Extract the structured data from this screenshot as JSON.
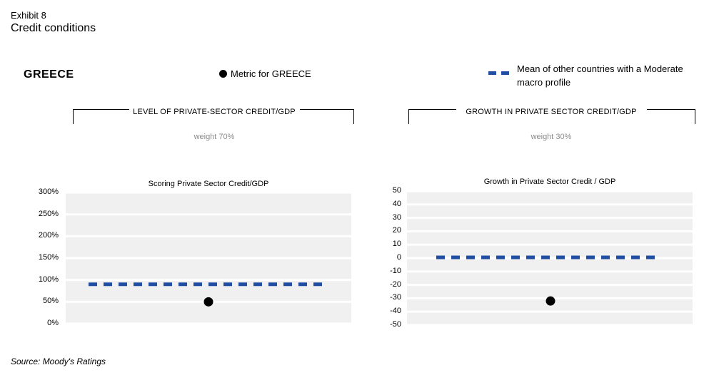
{
  "header": {
    "exhibit": "Exhibit 8",
    "title": "Credit conditions"
  },
  "country": "GREECE",
  "legend": {
    "dot_label": "Metric for GREECE",
    "dash_label": "Mean of other countries with a Moderate macro profile",
    "dash_color": "#1f4ea3",
    "dot_color": "#000000"
  },
  "sections": [
    {
      "heading": "LEVEL OF PRIVATE-SECTOR CREDIT/GDP",
      "weight": "weight 70%"
    },
    {
      "heading": "GROWTH IN PRIVATE SECTOR CREDIT/GDP",
      "weight": "weight 30%"
    }
  ],
  "chart_data": [
    {
      "type": "scatter",
      "title": "Scoring Private Sector Credit/GDP",
      "ylim": [
        0,
        300
      ],
      "yticks": [
        "300%",
        "250%",
        "200%",
        "150%",
        "100%",
        "50%",
        "0%"
      ],
      "ytick_values": [
        300,
        250,
        200,
        150,
        100,
        50,
        0
      ],
      "metric_value": 50,
      "peer_mean": 90,
      "grid": true
    },
    {
      "type": "scatter",
      "title": "Growth in Private Sector Credit / GDP",
      "ylim": [
        -50,
        50
      ],
      "yticks": [
        "50",
        "40",
        "30",
        "20",
        "10",
        "0",
        "-10",
        "-20",
        "-30",
        "-40",
        "-50"
      ],
      "ytick_values": [
        50,
        40,
        30,
        20,
        10,
        0,
        -10,
        -20,
        -30,
        -40,
        -50
      ],
      "metric_value": -32,
      "peer_mean": 0.5,
      "grid": true
    }
  ],
  "source": "Source: Moody's Ratings"
}
